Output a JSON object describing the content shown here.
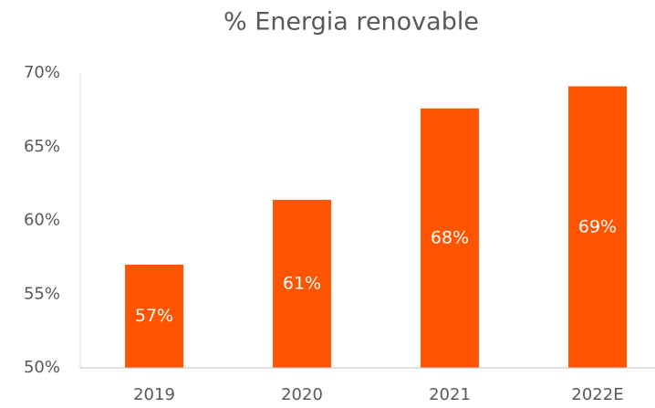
{
  "chart_data": {
    "type": "bar",
    "title": "% Energia renovable",
    "categories": [
      "2019",
      "2020",
      "2021",
      "2022E"
    ],
    "values": [
      57.0,
      61.4,
      67.6,
      69.1
    ],
    "value_labels": [
      "57%",
      "61%",
      "68%",
      "69%"
    ],
    "color": "#ff5500",
    "ylim": [
      50,
      70
    ],
    "yticks": [
      {
        "value": 50,
        "label": "50%"
      },
      {
        "value": 55,
        "label": "55%"
      },
      {
        "value": 60,
        "label": "60%"
      },
      {
        "value": 65,
        "label": "65%"
      },
      {
        "value": 70,
        "label": "70%"
      }
    ],
    "grid": false
  }
}
